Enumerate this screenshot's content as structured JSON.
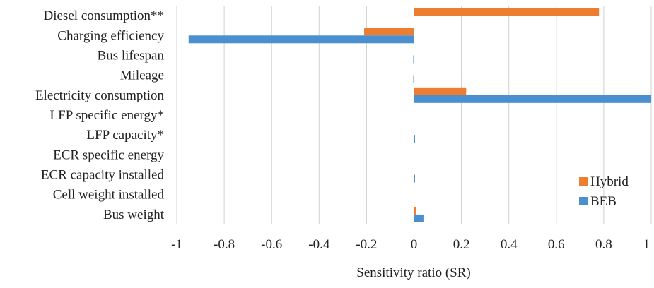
{
  "chart_data": {
    "type": "bar",
    "orientation": "horizontal",
    "title": "",
    "xlabel": "Sensitivity ratio (SR)",
    "ylabel": "",
    "xlim": [
      -1,
      1
    ],
    "xticks": [
      -1,
      -0.8,
      -0.6,
      -0.4,
      -0.2,
      0,
      0.2,
      0.4,
      0.6,
      0.8,
      1
    ],
    "xtick_labels": [
      "-1",
      "-0.8",
      "-0.6",
      "-0.4",
      "-0.2",
      "0",
      "0.2",
      "0.4",
      "0.6",
      "0.8",
      "1"
    ],
    "grid": true,
    "legend_position": "bottom-right",
    "categories": [
      "Diesel consumption**",
      "Charging efficiency",
      "Bus lifespan",
      "Mileage",
      "Electricity consumption",
      "LFP specific energy*",
      "LFP capacity*",
      "ECR specific energy",
      "ECR capacity installed",
      "Cell weight installed",
      "Bus weight"
    ],
    "series": [
      {
        "name": "Hybrid",
        "color": "#ED7D31",
        "values": [
          0.78,
          -0.21,
          0,
          0,
          0.22,
          0,
          0,
          0,
          0,
          0,
          0.01
        ]
      },
      {
        "name": "BEB",
        "color": "#4A90D0",
        "values": [
          0,
          -0.95,
          -0.003,
          -0.003,
          1.0,
          0,
          0.004,
          0,
          0.004,
          0,
          0.04
        ]
      }
    ]
  }
}
